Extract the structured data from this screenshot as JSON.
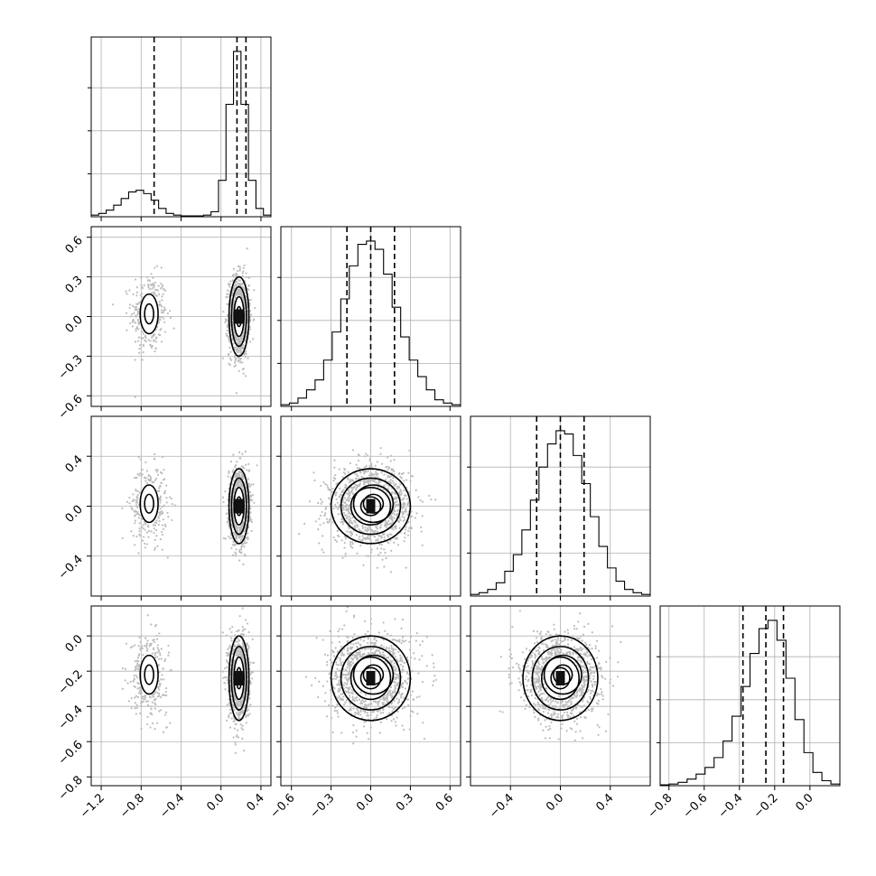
{
  "chart_data": {
    "type": "corner",
    "n_params": 4,
    "grid": true,
    "labels": [
      "",
      "",
      "",
      ""
    ],
    "ranges": [
      [
        -1.3,
        0.5
      ],
      [
        -0.68,
        0.68
      ],
      [
        -0.72,
        0.72
      ],
      [
        -0.85,
        0.17
      ]
    ],
    "ticks": [
      [
        -1.2,
        -0.8,
        -0.4,
        0.0,
        0.4
      ],
      [
        -0.6,
        -0.3,
        0.0,
        0.3,
        0.6
      ],
      [
        -0.4,
        0.0,
        0.4
      ],
      [
        -0.8,
        -0.6,
        -0.4,
        -0.2,
        0.0
      ]
    ],
    "tick_labels": [
      [
        "−1.2",
        "−0.8",
        "−0.4",
        "0.0",
        "0.4"
      ],
      [
        "−0.6",
        "−0.3",
        "0.0",
        "0.3",
        "0.6"
      ],
      [
        "−0.4",
        "0.0",
        "0.4"
      ],
      [
        "−0.8",
        "−0.6",
        "−0.4",
        "−0.2",
        "0.0"
      ]
    ],
    "quantiles": [
      [
        -0.67,
        0.16,
        0.25
      ],
      [
        -0.18,
        0.0,
        0.18
      ],
      [
        -0.19,
        0.0,
        0.19
      ],
      [
        -0.38,
        -0.25,
        -0.15
      ]
    ],
    "histograms": [
      {
        "counts": [
          0.01,
          0.02,
          0.04,
          0.07,
          0.11,
          0.15,
          0.16,
          0.14,
          0.1,
          0.05,
          0.02,
          0.01,
          0.005,
          0.005,
          0.005,
          0.01,
          0.03,
          0.22,
          0.68,
          1.0,
          0.68,
          0.22,
          0.05,
          0.01
        ],
        "range": [
          -1.3,
          0.5
        ]
      },
      {
        "counts": [
          0.01,
          0.02,
          0.05,
          0.1,
          0.16,
          0.28,
          0.45,
          0.65,
          0.85,
          0.98,
          1.0,
          0.95,
          0.8,
          0.6,
          0.42,
          0.28,
          0.18,
          0.1,
          0.04,
          0.02,
          0.01
        ],
        "range": [
          -0.68,
          0.68
        ]
      },
      {
        "counts": [
          0.01,
          0.02,
          0.04,
          0.08,
          0.15,
          0.25,
          0.4,
          0.58,
          0.78,
          0.92,
          1.0,
          0.98,
          0.85,
          0.68,
          0.48,
          0.3,
          0.17,
          0.09,
          0.04,
          0.02,
          0.01
        ],
        "range": [
          -0.72,
          0.72
        ]
      },
      {
        "counts": [
          0.005,
          0.01,
          0.02,
          0.04,
          0.07,
          0.11,
          0.17,
          0.27,
          0.42,
          0.6,
          0.8,
          0.95,
          1.0,
          0.88,
          0.65,
          0.4,
          0.2,
          0.08,
          0.03,
          0.01
        ],
        "range": [
          -0.85,
          0.17
        ]
      }
    ],
    "modes": [
      {
        "weight": 0.24,
        "mean": [
          -0.72,
          0.02,
          0.02,
          -0.22
        ],
        "sd": [
          0.09,
          0.15,
          0.15,
          0.11
        ]
      },
      {
        "weight": 0.76,
        "mean": [
          0.18,
          0.0,
          0.0,
          -0.24
        ],
        "sd": [
          0.05,
          0.15,
          0.15,
          0.12
        ]
      }
    ],
    "levels": [
      {
        "sigma": 0.5,
        "fill": "#3a3a3a"
      },
      {
        "sigma": 1.0,
        "fill": "#8a8a8a"
      },
      {
        "sigma": 1.5,
        "fill": "#c8c8c8"
      },
      {
        "sigma": 2.0,
        "fill": "#ededed"
      }
    ],
    "colors": {
      "hist": "#000000",
      "points": "#bdbdbd",
      "core": "#111111"
    }
  }
}
